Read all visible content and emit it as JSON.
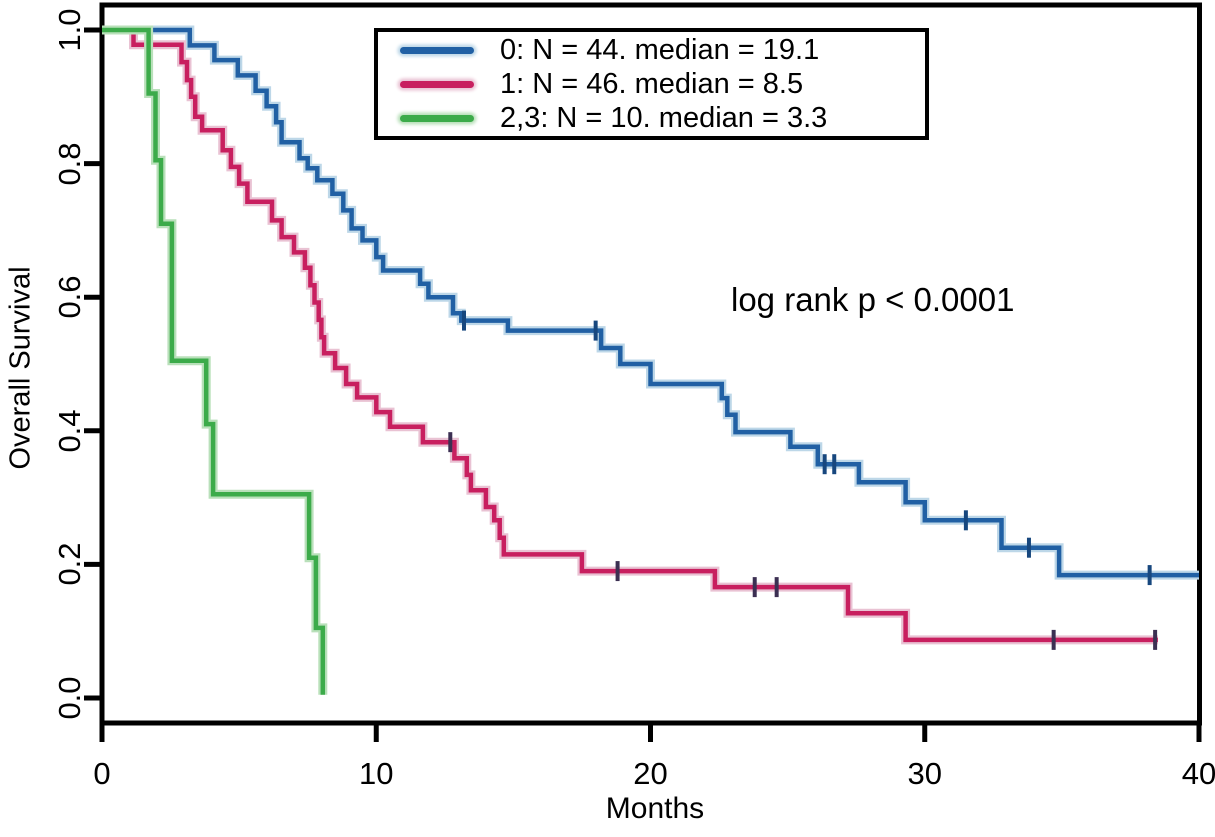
{
  "figure": {
    "x_axis_label": "Months",
    "y_axis_label": "Overall Survival",
    "annotation": "log rank p < 0.0001"
  },
  "legend": {
    "entries": [
      {
        "label": "0: N = 44. median = 19.1"
      },
      {
        "label": "1: N = 46. median = 8.5"
      },
      {
        "label": "2,3: N = 10. median = 3.3"
      }
    ]
  },
  "chart_data": {
    "type": "line",
    "subtype": "kaplan-meier-step",
    "title": "",
    "xlabel": "Months",
    "ylabel": "Overall Survival",
    "xlim": [
      0,
      40
    ],
    "ylim": [
      0.0,
      1.0
    ],
    "x_ticks": [
      0,
      10,
      20,
      30,
      40
    ],
    "y_ticks": [
      "1.0",
      "0.8",
      "0.6",
      "0.4",
      "0.2",
      "0.0"
    ],
    "y_tick_values": [
      1.0,
      0.8,
      0.6,
      0.4,
      0.2,
      0.0
    ],
    "grid": false,
    "legend_position": "upper-left-inside",
    "annotation": "log rank p < 0.0001",
    "axis_color": "#000000",
    "series": [
      {
        "name": "0",
        "legend_label": "0: N = 44. median = 19.1",
        "n": 44,
        "median": 19.1,
        "color": "#2160a4",
        "halo_color": "#bdd7e8",
        "censor_color": "#17477e",
        "end_time": 40,
        "steps": [
          [
            0,
            1.0
          ],
          [
            3.2,
            0.977
          ],
          [
            4.1,
            0.955
          ],
          [
            4.95,
            0.932
          ],
          [
            5.6,
            0.909
          ],
          [
            6.0,
            0.886
          ],
          [
            6.35,
            0.862
          ],
          [
            6.55,
            0.832
          ],
          [
            7.2,
            0.808
          ],
          [
            7.5,
            0.793
          ],
          [
            7.85,
            0.775
          ],
          [
            8.4,
            0.755
          ],
          [
            8.8,
            0.73
          ],
          [
            9.1,
            0.703
          ],
          [
            9.5,
            0.685
          ],
          [
            10.0,
            0.66
          ],
          [
            10.25,
            0.64
          ],
          [
            11.6,
            0.62
          ],
          [
            11.9,
            0.6
          ],
          [
            12.8,
            0.576
          ],
          [
            13.1,
            0.565
          ],
          [
            14.8,
            0.55
          ],
          [
            18.2,
            0.524
          ],
          [
            18.9,
            0.5
          ],
          [
            20.0,
            0.47
          ],
          [
            22.6,
            0.449
          ],
          [
            22.8,
            0.424
          ],
          [
            23.1,
            0.398
          ],
          [
            25.1,
            0.376
          ],
          [
            26.1,
            0.35
          ],
          [
            27.6,
            0.323
          ],
          [
            29.3,
            0.293
          ],
          [
            30.0,
            0.266
          ],
          [
            32.8,
            0.225
          ],
          [
            34.9,
            0.184
          ]
        ],
        "censor_marks": [
          [
            13.2,
            0.565
          ],
          [
            18.0,
            0.55
          ],
          [
            26.35,
            0.35
          ],
          [
            26.7,
            0.35
          ],
          [
            31.5,
            0.266
          ],
          [
            33.8,
            0.225
          ],
          [
            38.2,
            0.184
          ]
        ]
      },
      {
        "name": "1",
        "legend_label": "1: N = 46. median = 8.5",
        "n": 46,
        "median": 8.5,
        "color": "#c81f5f",
        "halo_color": "#e9c2d3",
        "censor_color": "#3c2f52",
        "end_time": 38.5,
        "steps": [
          [
            0,
            1.0
          ],
          [
            1.15,
            0.978
          ],
          [
            2.9,
            0.952
          ],
          [
            3.1,
            0.925
          ],
          [
            3.25,
            0.9
          ],
          [
            3.4,
            0.87
          ],
          [
            3.65,
            0.85
          ],
          [
            4.4,
            0.82
          ],
          [
            4.7,
            0.795
          ],
          [
            5.0,
            0.77
          ],
          [
            5.3,
            0.743
          ],
          [
            6.2,
            0.715
          ],
          [
            6.55,
            0.69
          ],
          [
            7.0,
            0.667
          ],
          [
            7.4,
            0.644
          ],
          [
            7.6,
            0.618
          ],
          [
            7.75,
            0.592
          ],
          [
            7.9,
            0.566
          ],
          [
            8.0,
            0.54
          ],
          [
            8.1,
            0.516
          ],
          [
            8.5,
            0.494
          ],
          [
            8.9,
            0.47
          ],
          [
            9.3,
            0.45
          ],
          [
            10.0,
            0.428
          ],
          [
            10.5,
            0.406
          ],
          [
            11.7,
            0.383
          ],
          [
            12.85,
            0.359
          ],
          [
            13.3,
            0.334
          ],
          [
            13.45,
            0.311
          ],
          [
            14.0,
            0.286
          ],
          [
            14.3,
            0.266
          ],
          [
            14.5,
            0.24
          ],
          [
            14.65,
            0.215
          ],
          [
            17.5,
            0.19
          ],
          [
            22.35,
            0.166
          ],
          [
            27.2,
            0.127
          ],
          [
            29.3,
            0.087
          ]
        ],
        "censor_marks": [
          [
            12.7,
            0.383
          ],
          [
            18.8,
            0.19
          ],
          [
            23.8,
            0.166
          ],
          [
            24.6,
            0.166
          ],
          [
            34.7,
            0.087
          ],
          [
            38.4,
            0.087
          ]
        ]
      },
      {
        "name": "2,3",
        "legend_label": "2,3: N = 10. median = 3.3",
        "n": 10,
        "median": 3.3,
        "color": "#3cab4a",
        "halo_color": "#b9e0ba",
        "censor_color": "#2d7a36",
        "end_time": 8.05,
        "steps": [
          [
            0,
            1.0
          ],
          [
            1.7,
            0.905
          ],
          [
            1.95,
            0.805
          ],
          [
            2.15,
            0.71
          ],
          [
            2.55,
            0.505
          ],
          [
            3.8,
            0.41
          ],
          [
            4.05,
            0.305
          ],
          [
            7.55,
            0.21
          ],
          [
            7.8,
            0.105
          ],
          [
            8.05,
            0.005
          ]
        ],
        "censor_marks": []
      }
    ]
  }
}
